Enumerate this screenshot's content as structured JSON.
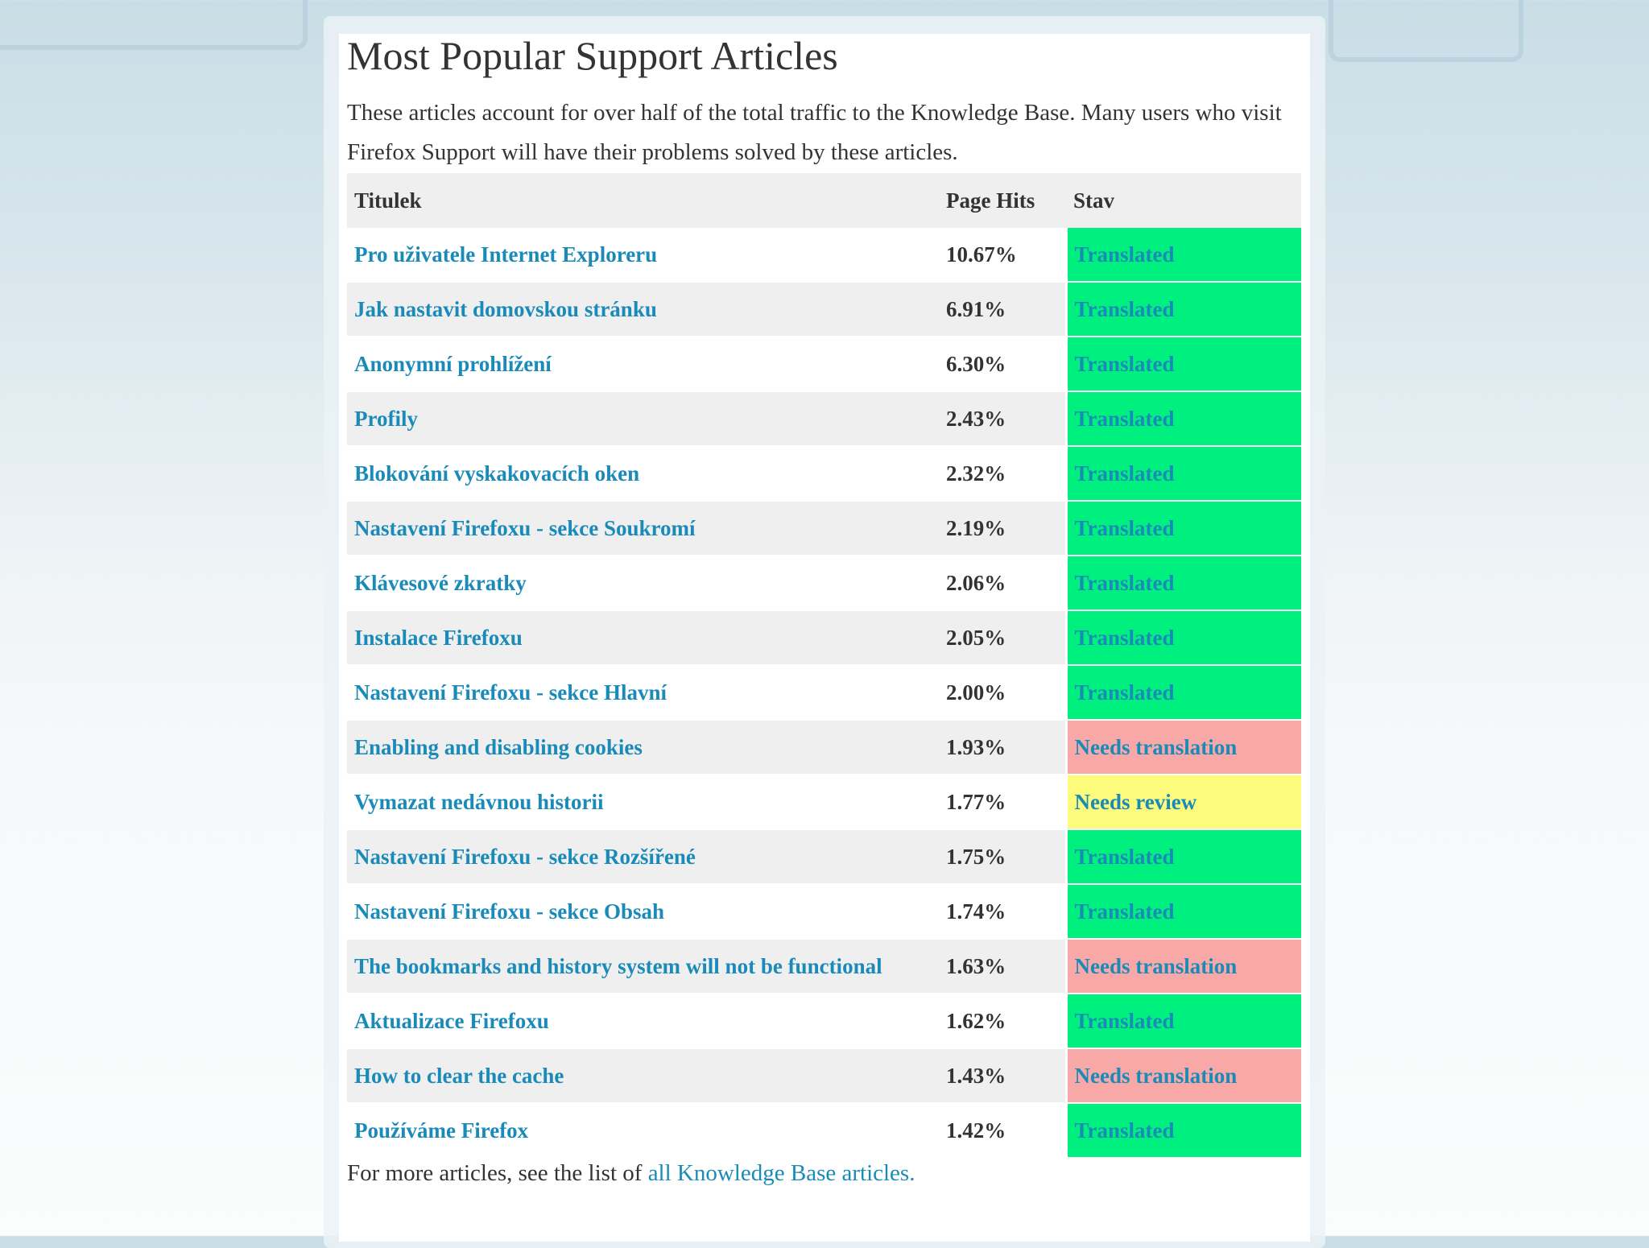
{
  "title": "Most Popular Support Articles",
  "intro": "These articles account for over half of the total traffic to the Knowledge Base. Many users who visit Firefox Support will have their problems solved by these articles.",
  "columns": [
    "Titulek",
    "Page Hits",
    "Stav"
  ],
  "status_colors": {
    "Translated": "#00f07f",
    "Needs translation": "#f9a8a8",
    "Needs review": "#fdfb7c"
  },
  "rows": [
    {
      "title": "Pro uživatele Internet Exploreru",
      "hits": "10.67%",
      "status": "Translated"
    },
    {
      "title": "Jak nastavit domovskou stránku",
      "hits": "6.91%",
      "status": "Translated"
    },
    {
      "title": "Anonymní prohlížení",
      "hits": "6.30%",
      "status": "Translated"
    },
    {
      "title": "Profily",
      "hits": "2.43%",
      "status": "Translated"
    },
    {
      "title": "Blokování vyskakovacích oken",
      "hits": "2.32%",
      "status": "Translated"
    },
    {
      "title": "Nastavení Firefoxu - sekce Soukromí",
      "hits": "2.19%",
      "status": "Translated"
    },
    {
      "title": "Klávesové zkratky",
      "hits": "2.06%",
      "status": "Translated"
    },
    {
      "title": "Instalace Firefoxu",
      "hits": "2.05%",
      "status": "Translated"
    },
    {
      "title": "Nastavení Firefoxu - sekce Hlavní",
      "hits": "2.00%",
      "status": "Translated"
    },
    {
      "title": "Enabling and disabling cookies",
      "hits": "1.93%",
      "status": "Needs translation"
    },
    {
      "title": "Vymazat nedávnou historii",
      "hits": "1.77%",
      "status": "Needs review"
    },
    {
      "title": "Nastavení Firefoxu - sekce Rozšířené",
      "hits": "1.75%",
      "status": "Translated"
    },
    {
      "title": "Nastavení Firefoxu - sekce Obsah",
      "hits": "1.74%",
      "status": "Translated"
    },
    {
      "title": "The bookmarks and history system will not be functional",
      "hits": "1.63%",
      "status": "Needs translation"
    },
    {
      "title": "Aktualizace Firefoxu",
      "hits": "1.62%",
      "status": "Translated"
    },
    {
      "title": "How to clear the cache",
      "hits": "1.43%",
      "status": "Needs translation"
    },
    {
      "title": "Používáme Firefox",
      "hits": "1.42%",
      "status": "Translated"
    }
  ],
  "footer": {
    "text": "For more articles, see the list of ",
    "link": "all Knowledge Base articles."
  }
}
